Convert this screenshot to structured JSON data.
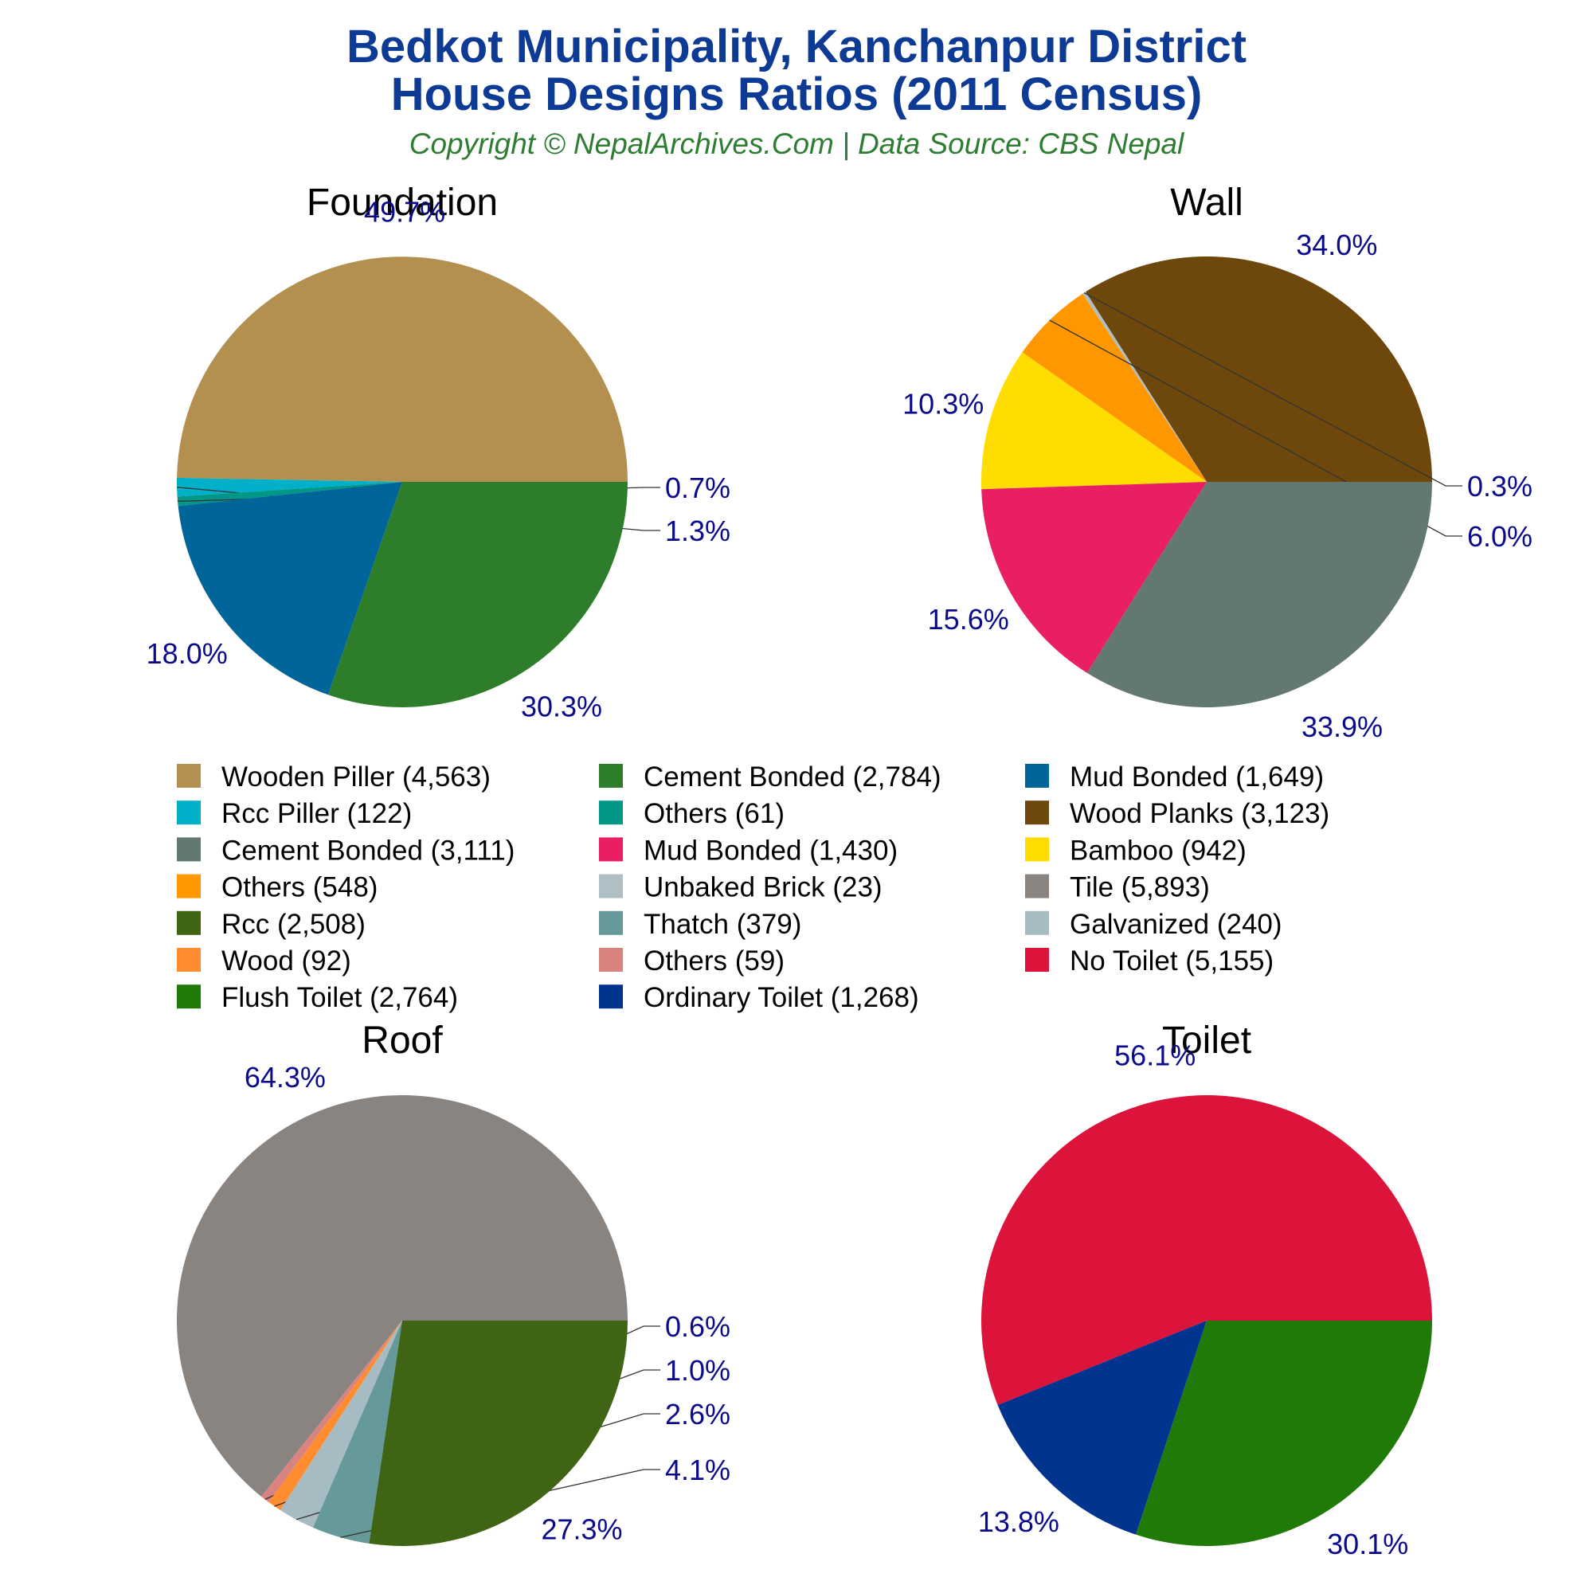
{
  "header": {
    "title_line1": "Bedkot Municipality, Kanchanpur District",
    "title_line2": "House Designs Ratios (2011 Census)",
    "subtitle": "Copyright © NepalArchives.Com | Data Source: CBS Nepal"
  },
  "colors": {
    "title": "#0d3a94",
    "subtitle": "#2e7d32",
    "percent_label": "#0a0a8a"
  },
  "chart_data": [
    {
      "type": "pie",
      "title": "Foundation",
      "slices": [
        {
          "name": "Wooden Piller",
          "value": 4563,
          "label": "49.7%",
          "color": "#b38f50"
        },
        {
          "name": "Rcc Piller",
          "value": 122,
          "label": "1.3%",
          "color": "#00afc8"
        },
        {
          "name": "Others",
          "value": 61,
          "label": "0.7%",
          "color": "#009688"
        },
        {
          "name": "Mud Bonded",
          "value": 1649,
          "label": "18.0%",
          "color": "#006699"
        },
        {
          "name": "Cement Bonded",
          "value": 2784,
          "label": "30.3%",
          "color": "#2e7d2a"
        }
      ]
    },
    {
      "type": "pie",
      "title": "Wall",
      "slices": [
        {
          "name": "Wood Planks",
          "value": 3123,
          "label": "34.0%",
          "color": "#6e470d"
        },
        {
          "name": "Unbaked Brick",
          "value": 23,
          "label": "0.3%",
          "color": "#b0bec5"
        },
        {
          "name": "Others",
          "value": 548,
          "label": "6.0%",
          "color": "#ff9800"
        },
        {
          "name": "Bamboo",
          "value": 942,
          "label": "10.3%",
          "color": "#ffdd00"
        },
        {
          "name": "Mud Bonded",
          "value": 1430,
          "label": "15.6%",
          "color": "#e91e63"
        },
        {
          "name": "Cement Bonded",
          "value": 3111,
          "label": "33.9%",
          "color": "#627870"
        }
      ]
    },
    {
      "type": "pie",
      "title": "Roof",
      "slices": [
        {
          "name": "Tile",
          "value": 5893,
          "label": "64.3%",
          "color": "#8a8481"
        },
        {
          "name": "Others",
          "value": 59,
          "label": "0.6%",
          "color": "#d98380"
        },
        {
          "name": "Wood",
          "value": 92,
          "label": "1.0%",
          "color": "#ff8c2e"
        },
        {
          "name": "Galvanized",
          "value": 240,
          "label": "2.6%",
          "color": "#a7bcc2"
        },
        {
          "name": "Thatch",
          "value": 379,
          "label": "4.1%",
          "color": "#669999"
        },
        {
          "name": "Rcc",
          "value": 2508,
          "label": "27.3%",
          "color": "#3e6414"
        }
      ]
    },
    {
      "type": "pie",
      "title": "Toilet",
      "slices": [
        {
          "name": "No Toilet",
          "value": 5155,
          "label": "56.1%",
          "color": "#dc143c"
        },
        {
          "name": "Ordinary Toilet",
          "value": 1268,
          "label": "13.8%",
          "color": "#00348f"
        },
        {
          "name": "Flush Toilet",
          "value": 2764,
          "label": "30.1%",
          "color": "#1f7a08"
        }
      ]
    }
  ],
  "legend": {
    "items": [
      {
        "label": "Wooden Piller (4,563)",
        "color": "#b38f50"
      },
      {
        "label": "Cement Bonded (2,784)",
        "color": "#2e7d2a"
      },
      {
        "label": "Mud Bonded (1,649)",
        "color": "#006699"
      },
      {
        "label": "Rcc Piller (122)",
        "color": "#00afc8"
      },
      {
        "label": "Others (61)",
        "color": "#009688"
      },
      {
        "label": "Wood Planks (3,123)",
        "color": "#6e470d"
      },
      {
        "label": "Cement Bonded (3,111)",
        "color": "#627870"
      },
      {
        "label": "Mud Bonded (1,430)",
        "color": "#e91e63"
      },
      {
        "label": "Bamboo (942)",
        "color": "#ffdd00"
      },
      {
        "label": "Others (548)",
        "color": "#ff9800"
      },
      {
        "label": "Unbaked Brick (23)",
        "color": "#b0bec5"
      },
      {
        "label": "Tile (5,893)",
        "color": "#8a8481"
      },
      {
        "label": "Rcc (2,508)",
        "color": "#3e6414"
      },
      {
        "label": "Thatch (379)",
        "color": "#669999"
      },
      {
        "label": "Galvanized (240)",
        "color": "#a7bcc2"
      },
      {
        "label": "Wood (92)",
        "color": "#ff8c2e"
      },
      {
        "label": "Others (59)",
        "color": "#d98380"
      },
      {
        "label": "No Toilet (5,155)",
        "color": "#dc143c"
      },
      {
        "label": "Flush Toilet (2,764)",
        "color": "#1f7a08"
      },
      {
        "label": "Ordinary Toilet (1,268)",
        "color": "#00348f"
      }
    ]
  }
}
